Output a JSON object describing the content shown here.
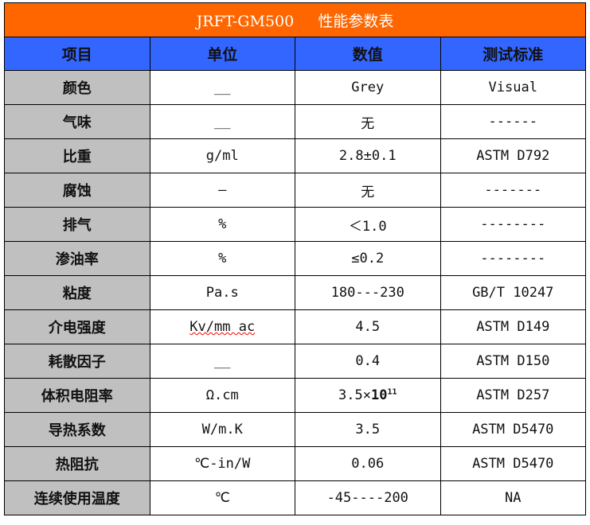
{
  "title": "JRFT-GM500     性能参数表",
  "colors": {
    "title_bg": "#FF6600",
    "header_bg": "#3366FF",
    "label_bg": "#C0C0C0"
  },
  "headers": [
    "项目",
    "单位",
    "数值",
    "测试标准"
  ],
  "rows": [
    {
      "item": "颜色",
      "unit": "__",
      "value": "Grey",
      "standard": "Visual"
    },
    {
      "item": "气味",
      "unit": "__",
      "value": "无",
      "standard": "------"
    },
    {
      "item": "比重",
      "unit": "g/ml",
      "value": "2.8±0.1",
      "standard": "ASTM D792"
    },
    {
      "item": "腐蚀",
      "unit": "—",
      "value": "无",
      "standard": "-------"
    },
    {
      "item": "排气",
      "unit": "%",
      "value": "＜1.0",
      "standard": "--------"
    },
    {
      "item": "渗油率",
      "unit": "%",
      "value": "≤0.2",
      "standard": "--------"
    },
    {
      "item": "粘度",
      "unit": "Pa.s",
      "value": "180---230",
      "standard": "GB/T 10247"
    },
    {
      "item": "介电强度",
      "unit": "Kv/mm ac",
      "value": "4.5",
      "standard": "ASTM D149"
    },
    {
      "item": "耗散因子",
      "unit": "__",
      "value": "0.4",
      "standard": "ASTM D150"
    },
    {
      "item": "体积电阻率",
      "unit": "Ω.cm",
      "value": "3.5×",
      "value_base": "10",
      "value_sup": "11",
      "standard": "ASTM D257"
    },
    {
      "item": "导热系数",
      "unit": "W/m.K",
      "value": "3.5",
      "standard": "ASTM D5470"
    },
    {
      "item": "热阻抗",
      "unit": "℃-in/W",
      "value": "0.06",
      "standard": "ASTM D5470"
    },
    {
      "item": "连续使用温度",
      "unit": "℃",
      "value": "-45----200",
      "standard": "NA"
    }
  ]
}
